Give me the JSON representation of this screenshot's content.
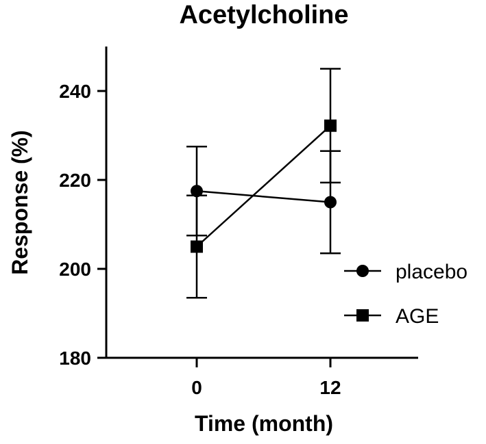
{
  "chart_data": {
    "type": "line",
    "title": "Acetylcholine",
    "xlabel": "Time (month)",
    "ylabel": "Response (%)",
    "x": [
      0,
      12
    ],
    "xticks": [
      "0",
      "12"
    ],
    "yticks": [
      180,
      200,
      220,
      240
    ],
    "ylim": [
      180,
      250
    ],
    "grid": false,
    "legend_position": "right",
    "series": [
      {
        "name": "placebo",
        "marker": "circle",
        "values": [
          217.5,
          215
        ],
        "error": [
          10,
          11.5
        ]
      },
      {
        "name": "AGE",
        "marker": "square",
        "values": [
          205,
          232.2
        ],
        "error": [
          11.5,
          12.8
        ]
      }
    ],
    "color": "#000000"
  }
}
